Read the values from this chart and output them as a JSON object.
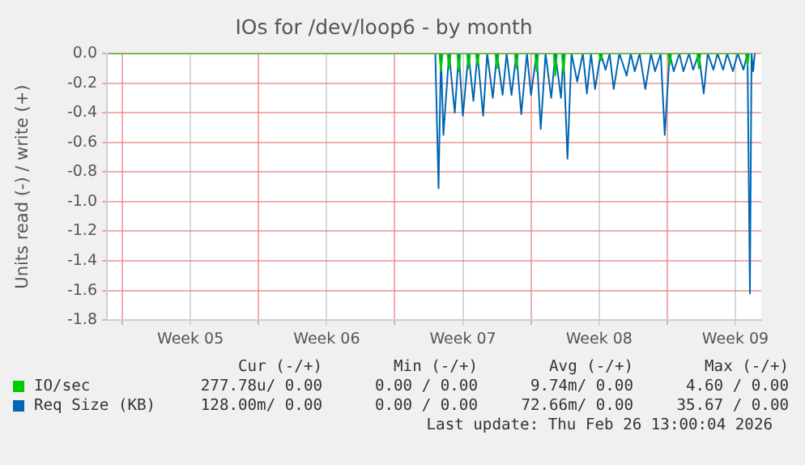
{
  "chart_data": {
    "type": "line",
    "title": "IOs for /dev/loop6 - by month",
    "ylabel": "Units read (-) / write (+)",
    "xlim": [
      "2026-01-24T05:00",
      "2026-02-26T20:00"
    ],
    "xticks": [
      {
        "value": "2026-01-25",
        "label": null
      },
      {
        "value": "2026-01-28T12:00",
        "label": "Week 05"
      },
      {
        "value": "2026-02-01",
        "label": null
      },
      {
        "value": "2026-02-04T12:00",
        "label": "Week 06"
      },
      {
        "value": "2026-02-08",
        "label": null
      },
      {
        "value": "2026-02-11T12:00",
        "label": "Week 07"
      },
      {
        "value": "2026-02-15",
        "label": null
      },
      {
        "value": "2026-02-18T12:00",
        "label": "Week 08"
      },
      {
        "value": "2026-02-22",
        "label": null
      },
      {
        "value": "2026-02-25T12:00",
        "label": "Week 09"
      }
    ],
    "ylim": [
      -1.8,
      0
    ],
    "yticks": [
      {
        "value": 0,
        "label": "0.0"
      },
      -0.2,
      -0.4,
      -0.6,
      -0.8,
      {
        "value": -1,
        "label": "-1.0"
      },
      -1.2,
      -1.4,
      -1.6,
      -1.8
    ],
    "grid": true,
    "legend": "bottom",
    "marker": "none",
    "line_style": "solid",
    "series": [
      {
        "name": "IO/sec",
        "color": "#00cc00",
        "x": [
          "2026-01-24T07:00",
          "2026-02-10T07:00",
          "2026-02-10T09:00",
          "2026-02-10T11:00",
          "2026-02-10T17:00",
          "2026-02-10T19:00",
          "2026-02-10T21:00",
          "2026-02-11T05:00",
          "2026-02-11T07:00",
          "2026-02-11T09:00",
          "2026-02-11T17:00",
          "2026-02-11T19:00",
          "2026-02-11T21:00",
          "2026-02-12T04:00",
          "2026-02-12T06:00",
          "2026-02-12T08:00",
          "2026-02-13T04:00",
          "2026-02-13T06:00",
          "2026-02-13T08:00",
          "2026-02-14T04:00",
          "2026-02-14T06:00",
          "2026-02-14T08:00",
          "2026-02-15T05:00",
          "2026-02-15T07:00",
          "2026-02-15T09:00",
          "2026-02-16T04:00",
          "2026-02-16T06:00",
          "2026-02-16T08:00",
          "2026-02-16T14:00",
          "2026-02-16T16:00",
          "2026-02-16T18:00",
          "2026-02-18T12:00",
          "2026-02-18T14:00",
          "2026-02-18T16:00",
          "2026-02-22T01:00",
          "2026-02-22T03:00",
          "2026-02-22T05:00",
          "2026-02-23T13:00",
          "2026-02-23T15:00",
          "2026-02-23T17:00",
          "2026-02-26T01:00",
          "2026-02-26T03:00",
          "2026-02-26T05:00"
        ],
        "values": [
          0,
          0,
          -0.12,
          0,
          0,
          -0.1,
          0,
          0,
          -0.12,
          0,
          0,
          -0.1,
          0,
          0,
          -0.08,
          0,
          0,
          -0.1,
          0,
          0,
          -0.1,
          0,
          0,
          -0.12,
          0,
          0,
          -0.15,
          0,
          0,
          -0.13,
          0,
          0,
          -0.05,
          0,
          0,
          -0.08,
          0,
          0,
          -0.1,
          0,
          0,
          -0.08,
          0
        ]
      },
      {
        "name": "Req Size (KB)",
        "color": "#0066b3",
        "x": [
          "2026-01-24T07:00",
          "2026-02-10T02:00",
          "2026-02-10T06:00",
          "2026-02-10T09:00",
          "2026-02-10T12:00",
          "2026-02-10T19:00",
          "2026-02-11T02:00",
          "2026-02-11T07:00",
          "2026-02-11T12:00",
          "2026-02-11T19:00",
          "2026-02-12T01:00",
          "2026-02-12T06:00",
          "2026-02-12T13:00",
          "2026-02-12T18:00",
          "2026-02-13T01:00",
          "2026-02-13T06:00",
          "2026-02-13T13:00",
          "2026-02-13T18:00",
          "2026-02-14T00:00",
          "2026-02-14T06:00",
          "2026-02-14T12:00",
          "2026-02-14T19:00",
          "2026-02-15T00:00",
          "2026-02-15T07:00",
          "2026-02-15T12:00",
          "2026-02-15T18:00",
          "2026-02-16T01:00",
          "2026-02-16T06:00",
          "2026-02-16T13:00",
          "2026-02-16T16:00",
          "2026-02-16T21:00",
          "2026-02-17T02:00",
          "2026-02-17T09:00",
          "2026-02-17T16:00",
          "2026-02-17T21:00",
          "2026-02-18T02:00",
          "2026-02-18T07:00",
          "2026-02-18T14:00",
          "2026-02-18T20:00",
          "2026-02-19T01:00",
          "2026-02-19T06:00",
          "2026-02-19T13:00",
          "2026-02-19T22:00",
          "2026-02-20T03:00",
          "2026-02-20T08:00",
          "2026-02-20T14:00",
          "2026-02-20T21:00",
          "2026-02-21T04:00",
          "2026-02-21T09:00",
          "2026-02-21T16:00",
          "2026-02-21T21:00",
          "2026-02-22T03:00",
          "2026-02-22T08:00",
          "2026-02-22T15:00",
          "2026-02-22T20:00",
          "2026-02-23T03:00",
          "2026-02-23T08:00",
          "2026-02-23T15:00",
          "2026-02-23T21:00",
          "2026-02-24T02:00",
          "2026-02-24T09:00",
          "2026-02-24T14:00",
          "2026-02-24T21:00",
          "2026-02-25T02:00",
          "2026-02-25T09:00",
          "2026-02-25T15:00",
          "2026-02-25T22:00",
          "2026-02-26T03:00",
          "2026-02-26T06:00",
          "2026-02-26T08:00",
          "2026-02-26T10:00",
          "2026-02-26T12:00"
        ],
        "values": [
          0,
          0,
          -0.91,
          0,
          -0.55,
          0,
          -0.4,
          0,
          -0.42,
          0,
          -0.32,
          0,
          -0.42,
          0,
          -0.3,
          0,
          -0.28,
          0,
          -0.28,
          0,
          -0.41,
          0,
          -0.28,
          0,
          -0.51,
          0,
          -0.3,
          0,
          -0.3,
          0,
          -0.71,
          0,
          -0.19,
          0,
          -0.27,
          0,
          -0.24,
          0,
          -0.11,
          0,
          -0.24,
          0,
          -0.15,
          0,
          -0.12,
          0,
          -0.24,
          0,
          -0.12,
          0,
          -0.55,
          0,
          -0.12,
          0,
          -0.12,
          0,
          -0.11,
          0,
          -0.27,
          0,
          -0.11,
          0,
          -0.11,
          0,
          -0.12,
          0,
          -0.11,
          0,
          -1.62,
          0,
          -0.12,
          0
        ]
      }
    ],
    "annotations": [
      "Cur (-/+)",
      "Min (-/+)",
      "Avg (-/+)",
      "Max (-/+)",
      "277.78u/ 0.00",
      "0.00 / 0.00",
      "9.74m/ 0.00",
      "4.60 / 0.00",
      "128.00m/ 0.00",
      "0.00 / 0.00",
      "72.66m/ 0.00",
      "35.67 / 0.00",
      "Last update: Thu Feb 26 13:00:04 2026"
    ]
  }
}
